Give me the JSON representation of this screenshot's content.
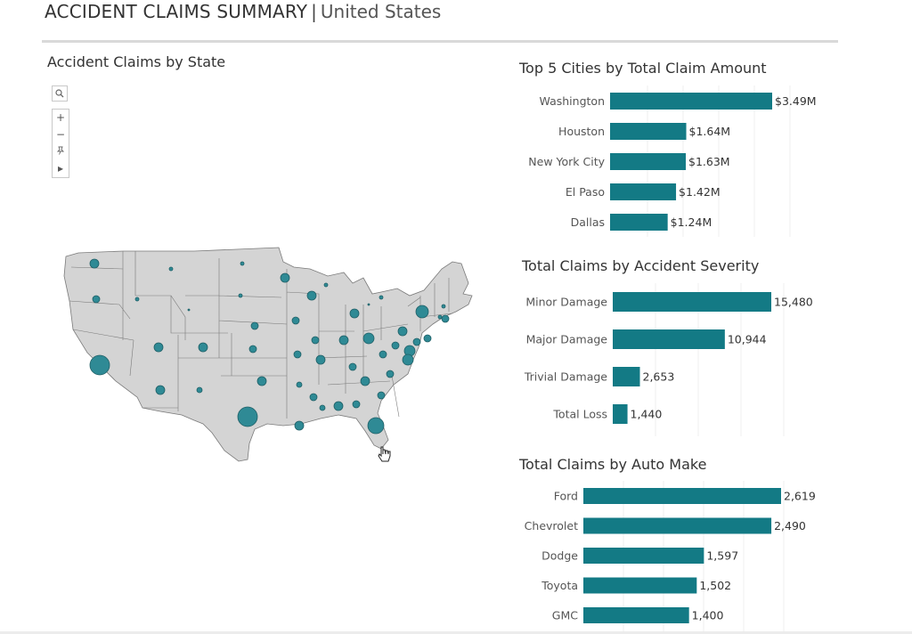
{
  "header": {
    "title": "ACCIDENT CLAIMS SUMMARY",
    "separator": "|",
    "subtitle": "United States"
  },
  "map": {
    "title": "Accident Claims by State",
    "controls": {
      "search_icon": "search-icon",
      "zoom_in": "+",
      "zoom_out": "−",
      "pin": "pin-icon",
      "play": "▸"
    },
    "colors": {
      "land": "#d4d4d4",
      "border": "#7a7a7a",
      "bubble": "#2f8a95",
      "bubble_stroke": "#1f5f66"
    }
  },
  "colors": {
    "bar": "#137a85",
    "grid": "#efefef"
  },
  "chart_data": [
    {
      "type": "bar",
      "title": "Top 5 Cities by Total Claim Amount",
      "categories": [
        "Washington",
        "Houston",
        "New York City",
        "El Paso",
        "Dallas"
      ],
      "values": [
        3.49,
        1.64,
        1.63,
        1.42,
        1.24
      ],
      "value_labels": [
        "$3.49M",
        "$1.64M",
        "$1.63M",
        "$1.42M",
        "$1.24M"
      ],
      "orientation": "horizontal"
    },
    {
      "type": "bar",
      "title": "Total Claims by Accident Severity",
      "categories": [
        "Minor Damage",
        "Major Damage",
        "Trivial Damage",
        "Total Loss"
      ],
      "values": [
        15480,
        10944,
        2653,
        1440
      ],
      "value_labels": [
        "15,480",
        "10,944",
        "2,653",
        "1,440"
      ],
      "orientation": "horizontal"
    },
    {
      "type": "bar",
      "title": "Total Claims by Auto Make",
      "categories": [
        "Ford",
        "Chevrolet",
        "Dodge",
        "Toyota",
        "GMC"
      ],
      "values": [
        2619,
        2490,
        1597,
        1502,
        1400
      ],
      "value_labels": [
        "2,619",
        "2,490",
        "1,597",
        "1,502",
        "1,400"
      ],
      "orientation": "horizontal"
    }
  ]
}
